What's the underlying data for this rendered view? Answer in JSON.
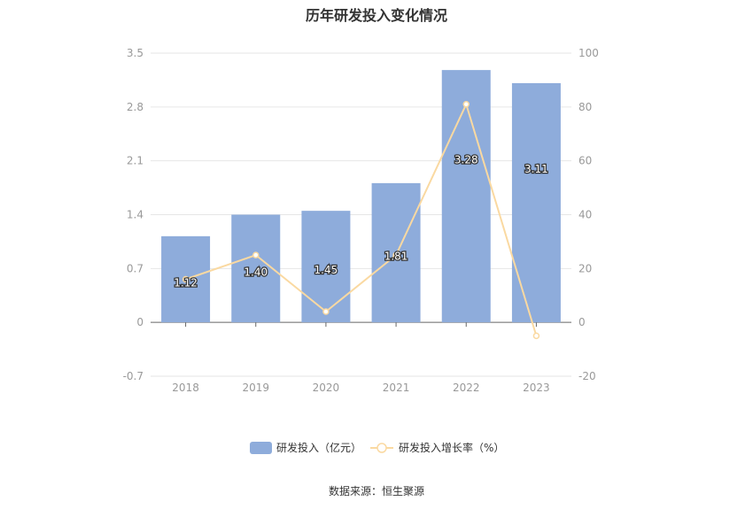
{
  "title": "历年研发投入变化情况",
  "source": "数据来源：恒生聚源",
  "colors": {
    "bar": "#8eacdb",
    "line": "#fad9a1",
    "grid": "#e6e6e6",
    "axis": "#999999",
    "text": "#333333"
  },
  "chart_data": {
    "type": "bar",
    "categories": [
      "2018",
      "2019",
      "2020",
      "2021",
      "2022",
      "2023"
    ],
    "series": [
      {
        "name": "研发投入（亿元）",
        "type": "bar",
        "axis": "left",
        "values": [
          1.12,
          1.4,
          1.45,
          1.81,
          3.28,
          3.11
        ],
        "labels": [
          "1.12",
          "1.40",
          "1.45",
          "1.81",
          "3.28",
          "3.11"
        ]
      },
      {
        "name": "研发投入增长率（%）",
        "type": "line",
        "axis": "right",
        "values": [
          16,
          25,
          4,
          25,
          81,
          -5
        ]
      }
    ],
    "y_left": {
      "min": -0.7,
      "max": 3.5,
      "ticks": [
        "-0.7",
        "0",
        "0.7",
        "1.4",
        "2.1",
        "2.8",
        "3.5"
      ]
    },
    "y_right": {
      "min": -20,
      "max": 100,
      "ticks": [
        "-20",
        "0",
        "20",
        "40",
        "60",
        "80",
        "100"
      ]
    },
    "grid": true,
    "legend_position": "bottom-center"
  }
}
